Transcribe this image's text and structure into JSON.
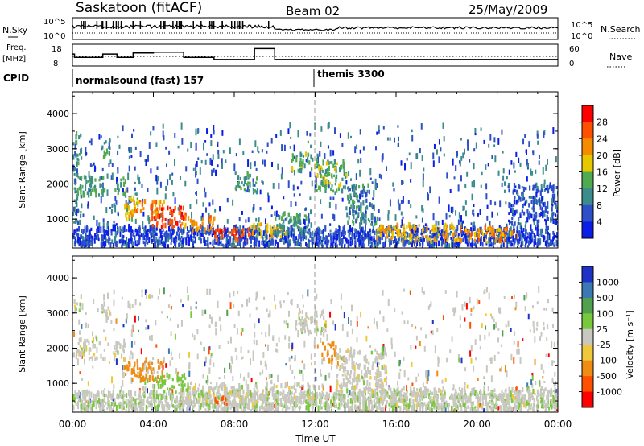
{
  "header": {
    "station": "Saskatoon (fitACF)",
    "beam": "Beam 02",
    "date": "25/May/2009"
  },
  "strip_panels": {
    "nsky_label": "N.Sky",
    "nsearch_label": "N.Search",
    "nsky_ticks": [
      "10^5",
      "10^0"
    ],
    "nsearch_ticks": [
      "10^5",
      "10^0"
    ],
    "freq_label": [
      "Freq.",
      "[MHz]"
    ],
    "freq_ticks": [
      "18",
      "8"
    ],
    "nave_label": "Nave",
    "nave_ticks": [
      "60",
      "0"
    ],
    "cpid_label": "CPID",
    "cpid_segments": [
      {
        "label": "normalsound (fast) 157",
        "start_hour": 0
      },
      {
        "label": "themis 3300",
        "start_hour": 12
      }
    ],
    "freq_steps": [
      {
        "t": 0,
        "f": 13.5
      },
      {
        "t": 0.1,
        "f": 12
      },
      {
        "t": 1.5,
        "f": 13.5
      },
      {
        "t": 2.2,
        "f": 12
      },
      {
        "t": 3.0,
        "f": 14
      },
      {
        "t": 4.0,
        "f": 14.4
      },
      {
        "t": 5.5,
        "f": 12
      },
      {
        "t": 7.0,
        "f": 11
      },
      {
        "t": 9.0,
        "f": 16
      },
      {
        "t": 10.0,
        "f": 11
      },
      {
        "t": 24,
        "f": 11
      }
    ]
  },
  "chart_data": [
    {
      "type": "heatmap",
      "title": "",
      "ylabel": "Slant Range [km]",
      "xlabel": "",
      "ylim": [
        180,
        4620
      ],
      "xlim": [
        0,
        24
      ],
      "y_ticks": [
        "1000",
        "2000",
        "3000",
        "4000"
      ],
      "colorbar_label": "Power [dB]",
      "colorbar_ticks": [
        "4",
        "8",
        "12",
        "16",
        "20",
        "24",
        "28"
      ],
      "colorbar_colors": [
        "#0a1ee6",
        "#2d50c8",
        "#3c8c8c",
        "#50aa50",
        "#e6c800",
        "#f58c00",
        "#ff5000",
        "#ff0000"
      ],
      "regions": [
        {
          "t0": 0.0,
          "t1": 0.4,
          "r0": 800,
          "r1": 3400,
          "v": 10
        },
        {
          "t0": 0.2,
          "t1": 1.6,
          "r0": 1600,
          "r1": 2200,
          "v": 12
        },
        {
          "t0": 1.4,
          "t1": 1.9,
          "r0": 2700,
          "r1": 3200,
          "v": 12
        },
        {
          "t0": 2.0,
          "t1": 2.6,
          "r0": 1600,
          "r1": 2100,
          "v": 13
        },
        {
          "t0": 2.5,
          "t1": 3.2,
          "r0": 900,
          "r1": 1600,
          "v": 18
        },
        {
          "t0": 3.0,
          "t1": 4.5,
          "r0": 1100,
          "r1": 1500,
          "v": 22
        },
        {
          "t0": 3.8,
          "t1": 5.6,
          "r0": 700,
          "r1": 1300,
          "v": 27
        },
        {
          "t0": 5.5,
          "t1": 7.0,
          "r0": 600,
          "r1": 1000,
          "v": 22
        },
        {
          "t0": 7.0,
          "t1": 8.8,
          "r0": 300,
          "r1": 700,
          "v": 26
        },
        {
          "t0": 8.8,
          "t1": 10.5,
          "r0": 400,
          "r1": 800,
          "v": 18
        },
        {
          "t0": 8.0,
          "t1": 9.2,
          "r0": 1700,
          "r1": 2300,
          "v": 11
        },
        {
          "t0": 10.0,
          "t1": 11.8,
          "r0": 500,
          "r1": 1100,
          "v": 12
        },
        {
          "t0": 10.8,
          "t1": 12.2,
          "r0": 2300,
          "r1": 2800,
          "v": 13
        },
        {
          "t0": 12.0,
          "t1": 13.5,
          "r0": 1700,
          "r1": 2600,
          "v": 14
        },
        {
          "t0": 13.5,
          "t1": 15.0,
          "r0": 800,
          "r1": 1900,
          "v": 10
        },
        {
          "t0": 15.0,
          "t1": 19.0,
          "r0": 300,
          "r1": 800,
          "v": 20
        },
        {
          "t0": 19.0,
          "t1": 22.0,
          "r0": 300,
          "r1": 700,
          "v": 22
        },
        {
          "t0": 21.5,
          "t1": 24.0,
          "r0": 800,
          "r1": 1900,
          "v": 6
        }
      ]
    },
    {
      "type": "heatmap",
      "title": "",
      "ylabel": "Slant Range [km]",
      "xlabel": "Time UT",
      "ylim": [
        180,
        4620
      ],
      "xlim": [
        0,
        24
      ],
      "y_ticks": [
        "1000",
        "2000",
        "3000",
        "4000"
      ],
      "x_ticks": [
        "00:00",
        "04:00",
        "08:00",
        "12:00",
        "16:00",
        "20:00",
        "00:00"
      ],
      "colorbar_label": "Velocity [m s⁻¹]",
      "colorbar_ticks": [
        "1000",
        "500",
        "100",
        "25",
        "-25",
        "-100",
        "-500",
        "-1000"
      ],
      "colorbar_colors": [
        "#1e32c8",
        "#3c78b4",
        "#50a050",
        "#78c83c",
        "#c8c8c0",
        "#f0c83c",
        "#f08c14",
        "#ff5000",
        "#ff0000"
      ],
      "regions": [
        {
          "t0": 0.0,
          "t1": 1.6,
          "r0": 1600,
          "r1": 2200,
          "v": 0
        },
        {
          "t0": 0.0,
          "t1": 0.4,
          "r0": 3000,
          "r1": 3400,
          "v": 0
        },
        {
          "t0": 1.4,
          "t1": 1.9,
          "r0": 2700,
          "r1": 3200,
          "v": 0
        },
        {
          "t0": 2.0,
          "t1": 2.6,
          "r0": 1600,
          "r1": 2100,
          "v": 0
        },
        {
          "t0": 2.5,
          "t1": 4.5,
          "r0": 1000,
          "r1": 1600,
          "v": -300
        },
        {
          "t0": 4.0,
          "t1": 5.6,
          "r0": 700,
          "r1": 1200,
          "v": 60
        },
        {
          "t0": 5.5,
          "t1": 9.0,
          "r0": 300,
          "r1": 900,
          "v": 0
        },
        {
          "t0": 7.0,
          "t1": 7.6,
          "r0": 350,
          "r1": 600,
          "v": -700
        },
        {
          "t0": 9.0,
          "t1": 12.0,
          "r0": 400,
          "r1": 900,
          "v": 0
        },
        {
          "t0": 11.0,
          "t1": 12.5,
          "r0": 2300,
          "r1": 3000,
          "v": 0
        },
        {
          "t0": 12.3,
          "t1": 13.0,
          "r0": 1500,
          "r1": 2100,
          "v": -300
        },
        {
          "t0": 13.0,
          "t1": 15.5,
          "r0": 700,
          "r1": 1900,
          "v": 0
        },
        {
          "t0": 15.0,
          "t1": 24.0,
          "r0": 300,
          "r1": 800,
          "v": 0
        }
      ]
    }
  ]
}
